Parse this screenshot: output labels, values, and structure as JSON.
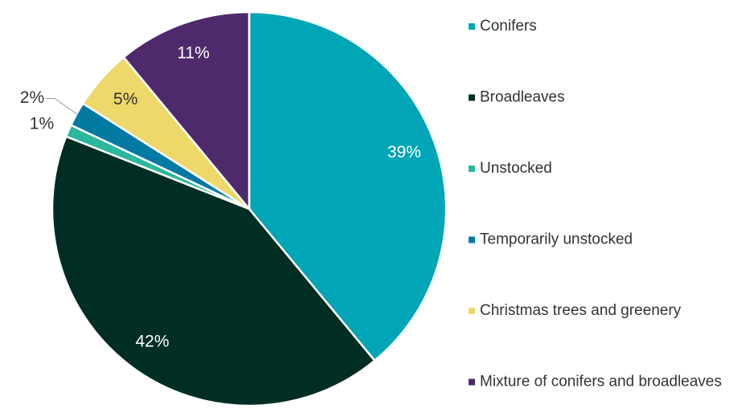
{
  "chart_data": {
    "type": "pie",
    "categories": [
      "Conifers",
      "Broadleaves",
      "Unstocked",
      "Temporarily unstocked",
      "Christmas trees and greenery",
      "Mixture of conifers and broadleaves"
    ],
    "values": [
      39,
      42,
      1,
      2,
      5,
      11
    ],
    "value_labels": [
      "39%",
      "42%",
      "1%",
      "2%",
      "5%",
      "11%"
    ],
    "colors": [
      "#00a6b6",
      "#002e24",
      "#2bb89c",
      "#007aa3",
      "#eed86a",
      "#4e2a6c"
    ],
    "label_colors": [
      "#ffffff",
      "#ffffff",
      "#333333",
      "#333333",
      "#333333",
      "#ffffff"
    ],
    "legend": "right"
  }
}
